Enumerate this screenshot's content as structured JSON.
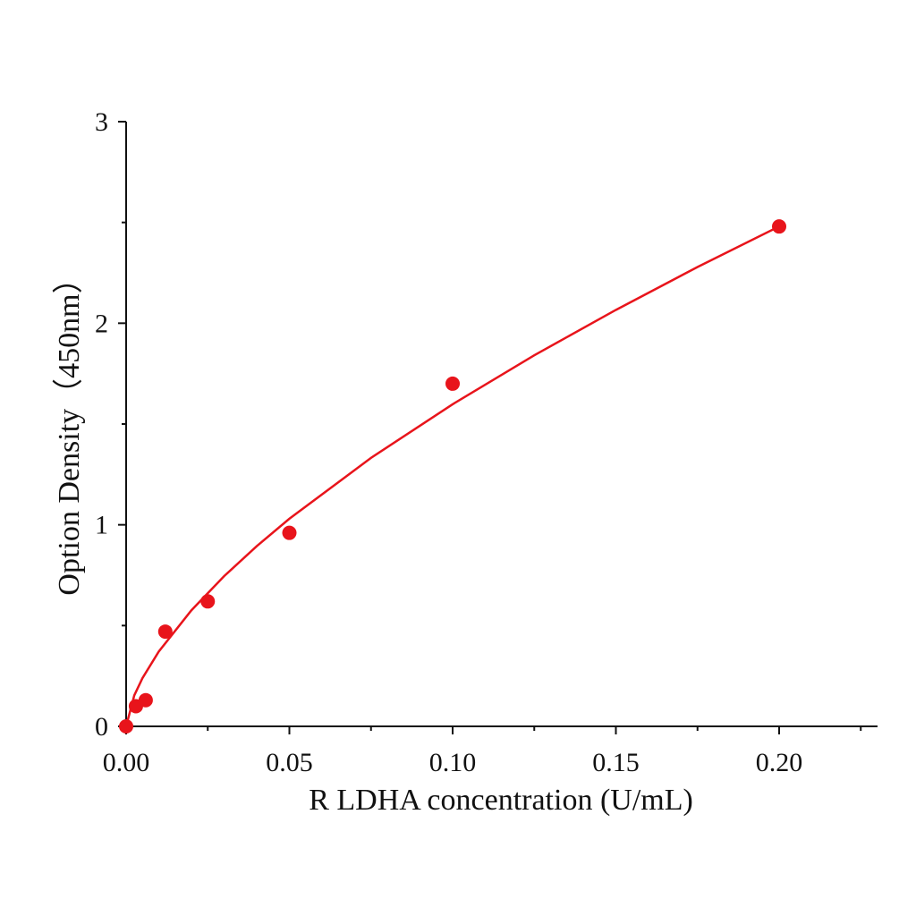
{
  "chart_data": {
    "type": "scatter",
    "x_label": "R LDHA concentration (U/mL)",
    "y_label": "Option Density（450nm）",
    "xlim": [
      0,
      0.23
    ],
    "ylim": [
      0,
      3
    ],
    "xticks": [
      {
        "value": 0,
        "label": "0.00"
      },
      0.05,
      {
        "value": 0.1,
        "label": "0.10"
      },
      0.15,
      {
        "value": 0.2,
        "label": "0.20"
      }
    ],
    "xminorticks": [
      0.025,
      0.075,
      0.125,
      0.175,
      0.225
    ],
    "yticks": [
      0,
      1,
      2,
      3
    ],
    "yminorticks": [
      0.5,
      1.5,
      2.5
    ],
    "color": "#e8141b",
    "series": [
      {
        "kind": "points",
        "x": [
          0,
          0.003,
          0.006,
          0.012,
          0.025,
          0.05,
          0.1,
          0.2
        ],
        "values": [
          0,
          0.1,
          0.13,
          0.47,
          0.62,
          0.96,
          1.7,
          2.48
        ]
      },
      {
        "kind": "curve",
        "x": [
          0,
          0.0025,
          0.005,
          0.01,
          0.02,
          0.03,
          0.04,
          0.05,
          0.075,
          0.1,
          0.125,
          0.15,
          0.175,
          0.2
        ],
        "values": [
          0,
          0.154,
          0.239,
          0.371,
          0.576,
          0.745,
          0.894,
          1.03,
          1.332,
          1.598,
          1.841,
          2.066,
          2.279,
          2.48
        ]
      }
    ]
  }
}
